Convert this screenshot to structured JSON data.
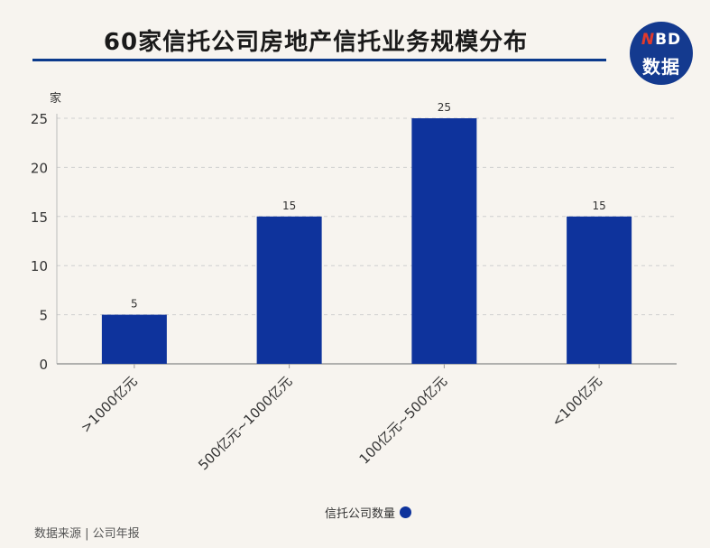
{
  "header": {
    "title": "60家信托公司房地产信托业务规模分布",
    "logo_top_accent": "N",
    "logo_top": "BD",
    "logo_bottom": "数据"
  },
  "footer": {
    "source": "数据来源 | 公司年报"
  },
  "colors": {
    "bar": "#0e339c",
    "title_rule": "#0b3a8c",
    "logo_bg": "#143a8f",
    "background": "#f7f4ef"
  },
  "chart_data": {
    "type": "bar",
    "title": "",
    "ylabel": "家",
    "xlabel": "",
    "categories": [
      ">1000亿元",
      "500亿元~1000亿元",
      "100亿元~500亿元",
      "<100亿元"
    ],
    "series": [
      {
        "name": "信托公司数量",
        "values": [
          5,
          15,
          25,
          15
        ]
      }
    ],
    "ylim": [
      0,
      25
    ],
    "yticks": [
      0,
      5,
      10,
      15,
      20,
      25
    ],
    "grid": true,
    "data_labels": true,
    "legend_position": "bottom-center"
  }
}
